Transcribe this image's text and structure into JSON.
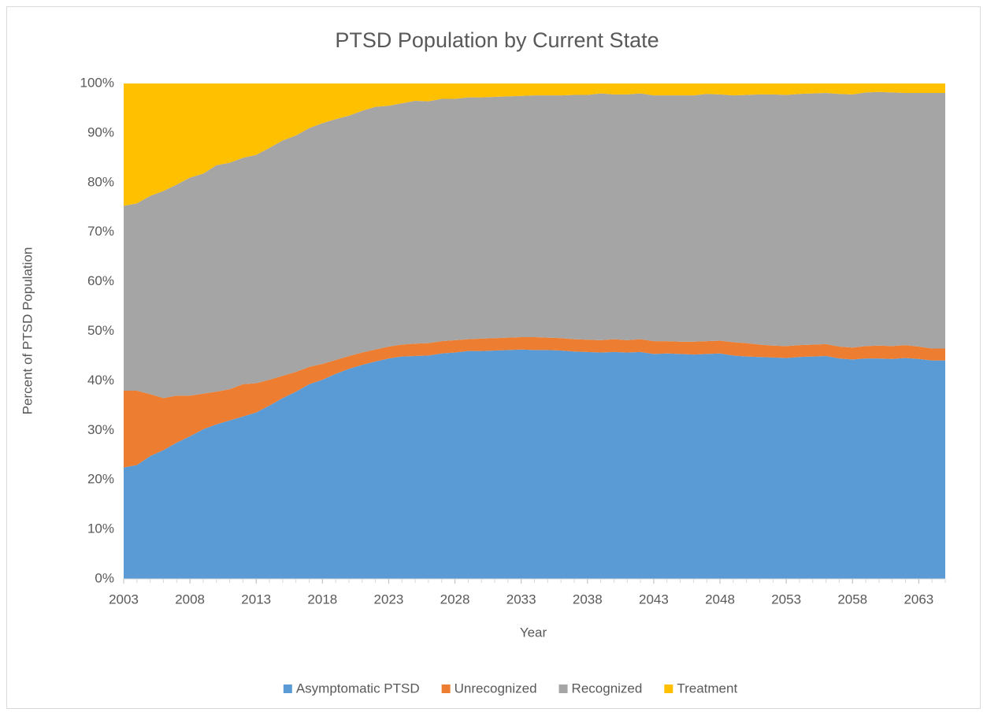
{
  "chart_data": {
    "type": "stacked_area",
    "title": "PTSD Population by Current State",
    "x_label": "Year",
    "y_label": "Percent of PTSD Population",
    "x": [
      2003,
      2004,
      2005,
      2006,
      2007,
      2008,
      2009,
      2010,
      2011,
      2012,
      2013,
      2014,
      2015,
      2016,
      2017,
      2018,
      2019,
      2020,
      2021,
      2022,
      2023,
      2024,
      2025,
      2026,
      2027,
      2028,
      2029,
      2030,
      2031,
      2032,
      2033,
      2034,
      2035,
      2036,
      2037,
      2038,
      2039,
      2040,
      2041,
      2042,
      2043,
      2044,
      2045,
      2046,
      2047,
      2048,
      2049,
      2050,
      2051,
      2052,
      2053,
      2054,
      2055,
      2056,
      2057,
      2058,
      2059,
      2060,
      2061,
      2062,
      2063,
      2064,
      2065
    ],
    "xlim": [
      2003,
      2065
    ],
    "xticks": [
      2003,
      2008,
      2013,
      2018,
      2023,
      2028,
      2033,
      2038,
      2043,
      2048,
      2053,
      2058,
      2063
    ],
    "ylim": [
      0,
      100
    ],
    "yticks": [
      {
        "value": 0,
        "label": "0%"
      },
      {
        "value": 10,
        "label": "10%"
      },
      {
        "value": 20,
        "label": "20%"
      },
      {
        "value": 30,
        "label": "30%"
      },
      {
        "value": 40,
        "label": "40%"
      },
      {
        "value": 50,
        "label": "50%"
      },
      {
        "value": 60,
        "label": "60%"
      },
      {
        "value": 70,
        "label": "70%"
      },
      {
        "value": 80,
        "label": "80%"
      },
      {
        "value": 90,
        "label": "90%"
      },
      {
        "value": 100,
        "label": "100%"
      }
    ],
    "legend": "bottom",
    "series": [
      {
        "name": "Asymptomatic PTSD",
        "color": "#5b9bd5",
        "values": [
          22.5,
          23,
          24.8,
          26,
          27.5,
          28.8,
          30.2,
          31.2,
          32,
          32.8,
          33.6,
          35,
          36.5,
          37.8,
          39.3,
          40.2,
          41.4,
          42.4,
          43.2,
          43.9,
          44.5,
          44.9,
          45,
          45.1,
          45.5,
          45.7,
          46,
          46,
          46.1,
          46.2,
          46.3,
          46.2,
          46.2,
          46.1,
          45.9,
          45.8,
          45.7,
          45.8,
          45.7,
          45.8,
          45.4,
          45.5,
          45.4,
          45.3,
          45.4,
          45.5,
          45.1,
          44.9,
          44.8,
          44.7,
          44.6,
          44.8,
          44.9,
          45,
          44.5,
          44.3,
          44.5,
          44.5,
          44.4,
          44.6,
          44.4,
          44.1,
          44.1
        ]
      },
      {
        "name": "Unrecognized",
        "color": "#ed7d31",
        "values": [
          15.5,
          15,
          12.5,
          10.5,
          9.5,
          8.2,
          7.2,
          6.6,
          6.3,
          6.5,
          5.9,
          5.2,
          4.5,
          4,
          3.5,
          3.2,
          2.8,
          2.6,
          2.5,
          2.4,
          2.4,
          2.4,
          2.5,
          2.5,
          2.5,
          2.5,
          2.4,
          2.5,
          2.5,
          2.5,
          2.5,
          2.6,
          2.5,
          2.5,
          2.5,
          2.5,
          2.5,
          2.6,
          2.5,
          2.6,
          2.6,
          2.5,
          2.5,
          2.6,
          2.6,
          2.6,
          2.7,
          2.7,
          2.5,
          2.4,
          2.4,
          2.4,
          2.4,
          2.4,
          2.4,
          2.4,
          2.5,
          2.6,
          2.6,
          2.6,
          2.5,
          2.4,
          2.4
        ]
      },
      {
        "name": "Recognized",
        "color": "#a5a5a5",
        "values": [
          37.3,
          37.8,
          40,
          41.8,
          42.6,
          44,
          44.4,
          45.7,
          45.7,
          45.7,
          46.1,
          46.8,
          47.5,
          47.7,
          48.2,
          48.6,
          48.6,
          48.5,
          48.8,
          49,
          48.6,
          48.7,
          49,
          48.8,
          48.9,
          48.7,
          48.8,
          48.7,
          48.7,
          48.7,
          48.7,
          48.8,
          48.9,
          49,
          49.3,
          49.4,
          49.8,
          49.4,
          49.6,
          49.6,
          49.6,
          49.6,
          49.7,
          49.7,
          49.9,
          49.7,
          49.8,
          50.1,
          50.5,
          50.7,
          50.7,
          50.7,
          50.7,
          50.7,
          51,
          51.1,
          51.2,
          51.2,
          51.2,
          50.9,
          51.2,
          51.6,
          51.6
        ]
      },
      {
        "name": "Treatment",
        "color": "#ffc000",
        "values": [
          24.7,
          24.2,
          22.7,
          21.7,
          20.4,
          19,
          18.2,
          16.5,
          16,
          15,
          14.4,
          13,
          11.5,
          10.5,
          9,
          8,
          7.2,
          6.5,
          5.5,
          4.7,
          4.5,
          4,
          3.5,
          3.6,
          3.1,
          3.1,
          2.8,
          2.8,
          2.7,
          2.6,
          2.5,
          2.4,
          2.4,
          2.4,
          2.3,
          2.3,
          2,
          2.2,
          2.2,
          2,
          2.4,
          2.4,
          2.4,
          2.4,
          2.1,
          2.2,
          2.4,
          2.3,
          2.2,
          2.2,
          2.3,
          2.1,
          2,
          1.9,
          2.1,
          2.2,
          1.8,
          1.7,
          1.8,
          1.9,
          1.9,
          1.9,
          1.9
        ]
      }
    ]
  }
}
